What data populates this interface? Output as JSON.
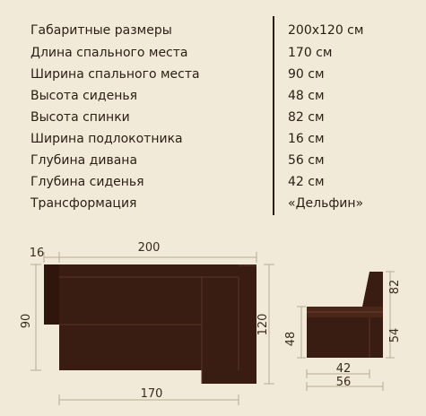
{
  "specs": [
    {
      "label": "Габаритные размеры",
      "value": "200x120 см"
    },
    {
      "label": "Длина спального места",
      "value": "170 см"
    },
    {
      "label": "Ширина спального места",
      "value": "90 см"
    },
    {
      "label": "Высота сиденья",
      "value": "48 см"
    },
    {
      "label": "Высота спинки",
      "value": "82 см"
    },
    {
      "label": "Ширина подлокотника",
      "value": "16 см"
    },
    {
      "label": "Глубина дивана",
      "value": "56 см"
    },
    {
      "label": "Глубина сиденья",
      "value": "42 см"
    },
    {
      "label": "Трансформация",
      "value": "«Дельфин»"
    }
  ],
  "diagram": {
    "top_width": "200",
    "armrest": "16",
    "left_height": "90",
    "right_height": "120",
    "bottom_length": "170",
    "side_back_height": "82",
    "side_seat_height": "48",
    "side_seat_right": "54",
    "side_seat_depth": "42",
    "side_total_depth": "56"
  },
  "colors": {
    "background": "#f1ead9",
    "upholstery": "#3a1d12",
    "text": "#2b1d14"
  }
}
